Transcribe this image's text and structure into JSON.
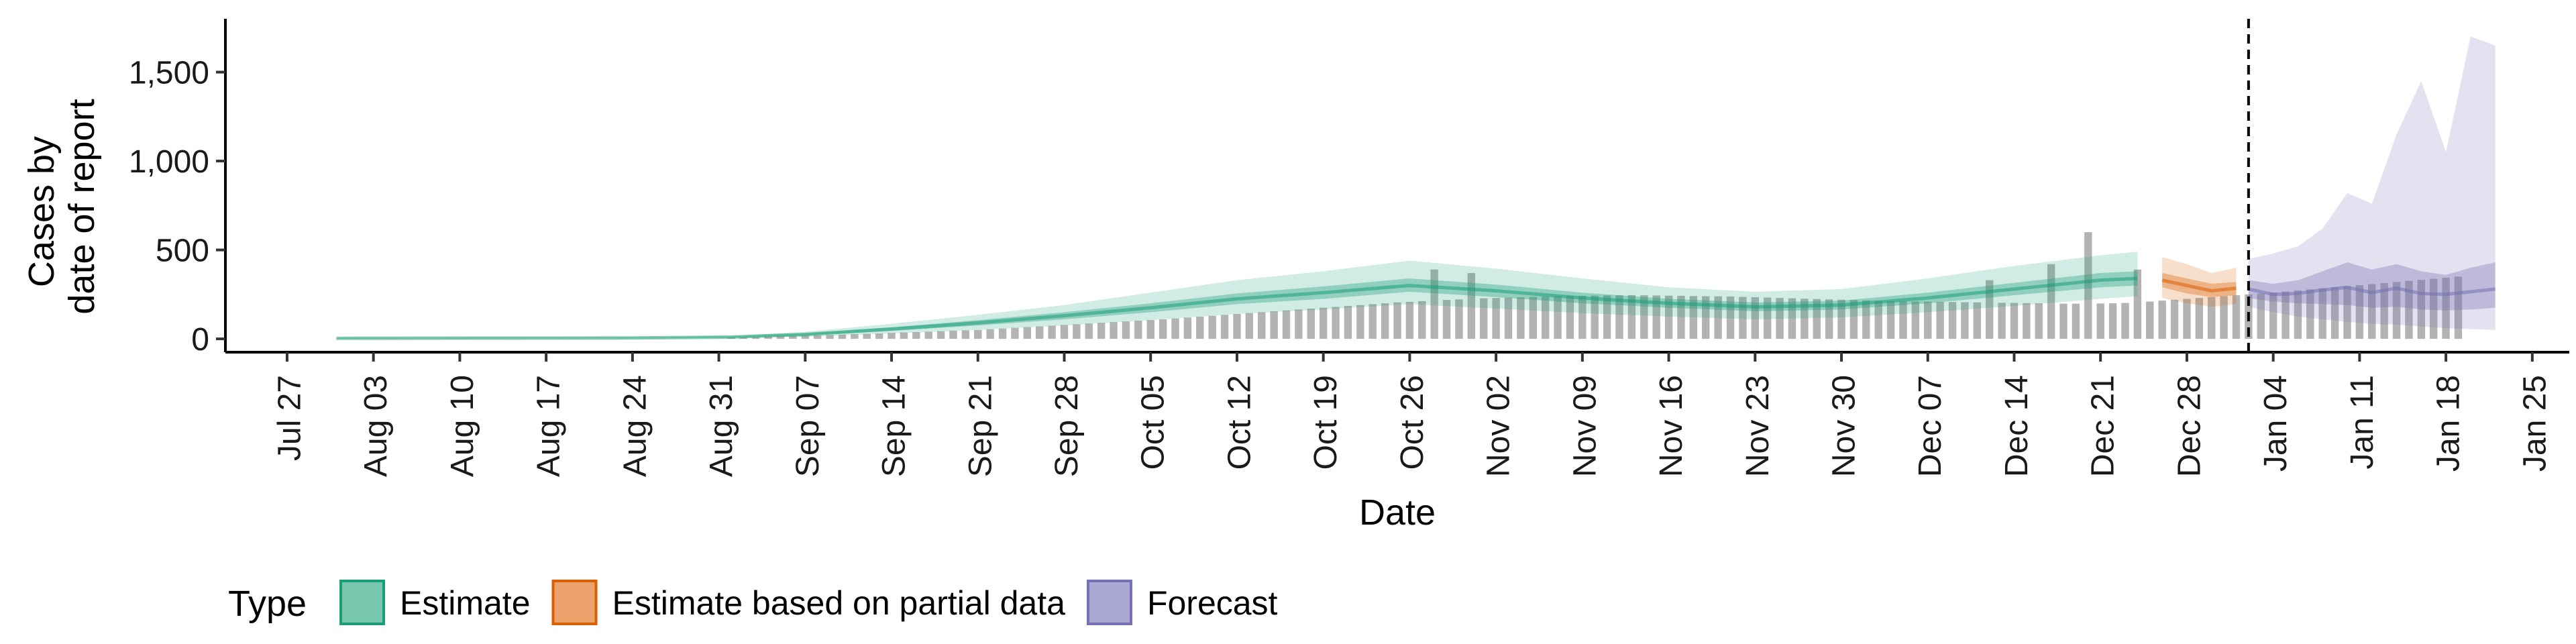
{
  "chart_data": {
    "type": "area",
    "xlabel": "Date",
    "ylabel_lines": [
      "Cases by",
      "date of report"
    ],
    "ylim": [
      -75,
      1800
    ],
    "y_ticks": [
      0,
      500,
      1000,
      1500
    ],
    "y_tick_labels": [
      "0",
      "500",
      "1,000",
      "1,500"
    ],
    "x_range": [
      "2020-07-22",
      "2021-01-28"
    ],
    "x_ticks": [
      "2020-07-27",
      "2020-08-03",
      "2020-08-10",
      "2020-08-17",
      "2020-08-24",
      "2020-08-31",
      "2020-09-07",
      "2020-09-14",
      "2020-09-21",
      "2020-09-28",
      "2020-10-05",
      "2020-10-12",
      "2020-10-19",
      "2020-10-26",
      "2020-11-02",
      "2020-11-09",
      "2020-11-16",
      "2020-11-23",
      "2020-11-30",
      "2020-12-07",
      "2020-12-14",
      "2020-12-21",
      "2020-12-28",
      "2021-01-04",
      "2021-01-11",
      "2021-01-18",
      "2021-01-25"
    ],
    "x_tick_labels": [
      "Jul 27",
      "Aug 03",
      "Aug 10",
      "Aug 17",
      "Aug 24",
      "Aug 31",
      "Sep 07",
      "Sep 14",
      "Sep 21",
      "Sep 28",
      "Oct 05",
      "Oct 12",
      "Oct 19",
      "Oct 26",
      "Nov 02",
      "Nov 09",
      "Nov 16",
      "Nov 23",
      "Nov 30",
      "Dec 07",
      "Dec 14",
      "Dec 21",
      "Dec 28",
      "Jan 04",
      "Jan 11",
      "Jan 18",
      "Jan 25"
    ],
    "forecast_start_line": "2021-01-02",
    "legend": {
      "title": "Type",
      "position": "bottom",
      "items": [
        {
          "label": "Estimate",
          "fill": "#76c7ad",
          "stroke": "#1b9e77"
        },
        {
          "label": "Estimate based on partial data",
          "fill": "#eba36b",
          "stroke": "#d95f02"
        },
        {
          "label": "Forecast",
          "fill": "#aba8d4",
          "stroke": "#7570b3"
        }
      ]
    },
    "colors": {
      "observed_bars": "#b3b3b3",
      "estimate": "#1b9e77",
      "partial": "#d95f02",
      "forecast": "#7570b3"
    },
    "observed_cases": {
      "start_date": "2020-09-01",
      "values": [
        6,
        8,
        10,
        12,
        14,
        16,
        18,
        20,
        22,
        24,
        26,
        28,
        30,
        33,
        36,
        38,
        40,
        43,
        46,
        48,
        50,
        54,
        58,
        62,
        66,
        70,
        74,
        78,
        82,
        86,
        90,
        94,
        98,
        102,
        106,
        110,
        115,
        120,
        125,
        130,
        135,
        140,
        145,
        150,
        155,
        160,
        165,
        170,
        175,
        180,
        185,
        190,
        195,
        200,
        205,
        208,
        212,
        216,
        219,
        222,
        225,
        228,
        230,
        232,
        234,
        236,
        238,
        240,
        241,
        242,
        243,
        244,
        245,
        246,
        245,
        244,
        243,
        242,
        241,
        240,
        239,
        238,
        236,
        234,
        232,
        230,
        228,
        226,
        224,
        222,
        220,
        218,
        216,
        214,
        212,
        211,
        210,
        209,
        208,
        207,
        206,
        205,
        204,
        203,
        202,
        201,
        200,
        199,
        198,
        198,
        198,
        199,
        200,
        202,
        205,
        210,
        215,
        220,
        225,
        230,
        235,
        240,
        245,
        250,
        255,
        260,
        266,
        272,
        278,
        284,
        290,
        296,
        302,
        308,
        314,
        320,
        326,
        332,
        338,
        344,
        350
      ],
      "spikes": {
        "2020-10-28": 390,
        "2020-10-31": 370,
        "2020-12-12": 330,
        "2020-12-17": 420,
        "2020-12-20": 600,
        "2020-12-24": 390
      }
    },
    "estimate": {
      "dates": [
        "2020-07-31",
        "2020-08-10",
        "2020-08-24",
        "2020-09-01",
        "2020-09-07",
        "2020-09-14",
        "2020-09-21",
        "2020-09-28",
        "2020-10-05",
        "2020-10-12",
        "2020-10-19",
        "2020-10-26",
        "2020-11-02",
        "2020-11-09",
        "2020-11-16",
        "2020-11-23",
        "2020-11-30",
        "2020-12-07",
        "2020-12-14",
        "2020-12-21",
        "2020-12-24"
      ],
      "median": [
        3,
        4,
        5,
        10,
        25,
        55,
        90,
        130,
        175,
        225,
        260,
        300,
        270,
        230,
        200,
        180,
        190,
        230,
        280,
        330,
        340
      ],
      "lower_50": [
        2,
        3,
        4,
        8,
        20,
        45,
        75,
        110,
        150,
        195,
        225,
        265,
        235,
        200,
        175,
        155,
        165,
        200,
        245,
        290,
        300
      ],
      "upper_50": [
        4,
        5,
        6,
        12,
        30,
        65,
        105,
        150,
        200,
        255,
        295,
        340,
        305,
        260,
        225,
        205,
        215,
        260,
        315,
        370,
        380
      ],
      "lower_90": [
        1,
        2,
        3,
        5,
        12,
        30,
        50,
        75,
        105,
        140,
        165,
        195,
        170,
        145,
        125,
        110,
        120,
        150,
        185,
        225,
        240
      ],
      "upper_90": [
        6,
        7,
        8,
        16,
        40,
        85,
        135,
        190,
        260,
        330,
        380,
        440,
        395,
        340,
        290,
        265,
        280,
        340,
        410,
        470,
        490
      ]
    },
    "partial": {
      "dates": [
        "2020-12-26",
        "2020-12-28",
        "2020-12-30",
        "2021-01-01"
      ],
      "median": [
        330,
        300,
        270,
        285
      ],
      "lower_50": [
        290,
        255,
        235,
        245
      ],
      "upper_50": [
        370,
        340,
        310,
        320
      ],
      "lower_90": [
        230,
        200,
        180,
        195
      ],
      "upper_90": [
        460,
        420,
        370,
        400
      ]
    },
    "forecast": {
      "dates": [
        "2021-01-02",
        "2021-01-04",
        "2021-01-06",
        "2021-01-08",
        "2021-01-10",
        "2021-01-12",
        "2021-01-14",
        "2021-01-16",
        "2021-01-18",
        "2021-01-20",
        "2021-01-22"
      ],
      "median": [
        280,
        250,
        255,
        275,
        290,
        260,
        285,
        255,
        250,
        265,
        280
      ],
      "lower_50": [
        230,
        210,
        200,
        195,
        190,
        175,
        180,
        165,
        160,
        165,
        175
      ],
      "upper_50": [
        330,
        310,
        330,
        380,
        430,
        390,
        420,
        380,
        360,
        400,
        430
      ],
      "lower_90": [
        180,
        150,
        125,
        110,
        95,
        85,
        80,
        70,
        60,
        55,
        50
      ],
      "upper_90": [
        450,
        480,
        520,
        620,
        820,
        760,
        1150,
        1450,
        1050,
        1700,
        1650
      ]
    }
  }
}
